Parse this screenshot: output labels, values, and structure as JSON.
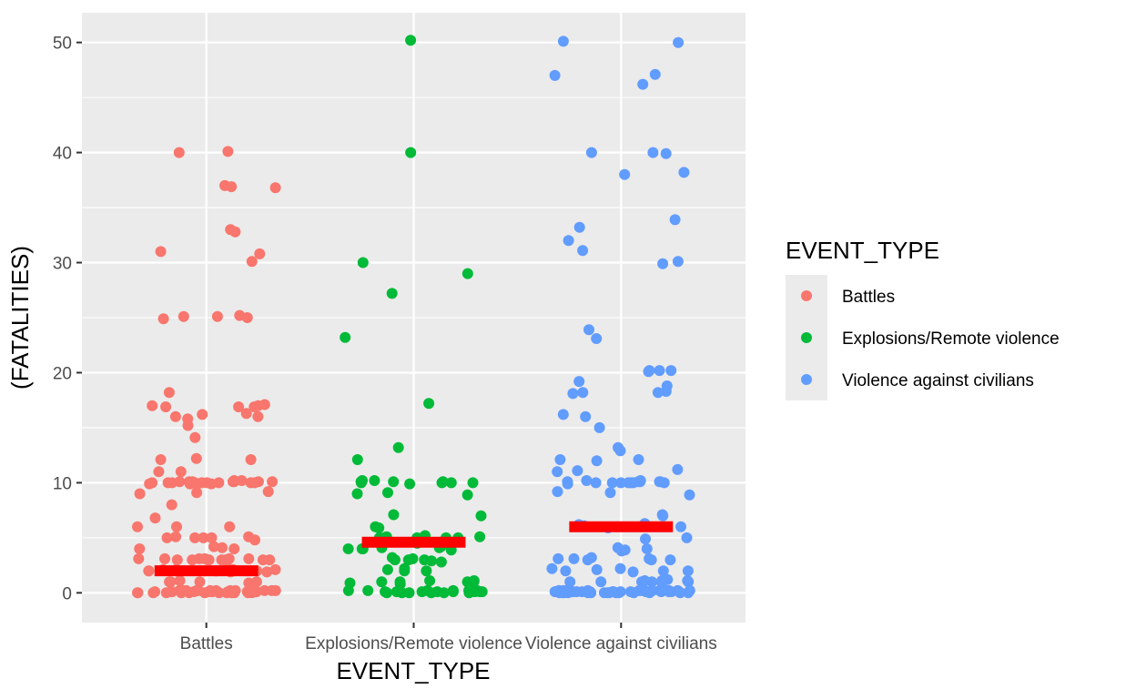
{
  "chart_data": {
    "type": "scatter",
    "title": "",
    "xlabel": "EVENT_TYPE",
    "ylabel": "(FATALITIES)",
    "categories": [
      "Battles",
      "Explosions/Remote violence",
      "Violence against civilians"
    ],
    "y_ticks": [
      0,
      10,
      20,
      30,
      40,
      50
    ],
    "ylim": [
      -2.7,
      52.7
    ],
    "grid": true,
    "legend": {
      "title": "EVENT_TYPE",
      "position": "right",
      "entries": [
        {
          "label": "Battles",
          "color": "#F8766D"
        },
        {
          "label": "Explosions/Remote violence",
          "color": "#00BA38"
        },
        {
          "label": "Violence against civilians",
          "color": "#619CFF"
        }
      ]
    },
    "mean_bars": [
      {
        "category": "Battles",
        "value": 2.0,
        "color": "#FF0000"
      },
      {
        "category": "Explosions/Remote violence",
        "value": 4.6,
        "color": "#FF0000"
      },
      {
        "category": "Violence against civilians",
        "value": 6.0,
        "color": "#FF0000"
      }
    ],
    "series": [
      {
        "name": "Battles",
        "color": "#F8766D",
        "values": [
          40.1,
          40,
          37,
          36.8,
          36.9,
          33,
          31,
          30.8,
          32.8,
          30.1,
          25.2,
          25.1,
          25,
          24.9,
          25.1,
          18.2,
          16.9,
          16.3,
          17,
          16.9,
          17,
          16.2,
          16.9,
          15.8,
          16,
          15.2,
          17.1,
          16,
          14.1,
          12.2,
          12.1,
          12.1,
          11,
          11,
          10.1,
          10,
          10.1,
          10,
          10.2,
          10,
          9.9,
          10.1,
          10,
          10.1,
          9.9,
          10,
          10.2,
          10,
          10,
          9.9,
          10.1,
          10,
          10.1,
          10,
          9.9,
          10.1,
          10,
          9.2,
          9.1,
          9,
          8,
          6.8,
          6,
          6,
          6,
          5.1,
          5,
          5,
          5.1,
          5,
          5,
          4.8,
          4.1,
          4,
          4,
          4.2,
          3.1,
          3,
          3.1,
          3,
          3.1,
          3,
          3.1,
          3,
          3,
          3,
          3.1,
          3,
          2.9,
          3,
          3.1,
          2,
          2.1,
          2,
          2.1,
          2,
          2.1,
          2,
          1.9,
          2,
          2,
          2.1,
          2,
          1.9,
          2,
          1,
          1,
          0.9,
          1.1,
          1,
          1,
          0.2,
          0.1,
          0.2,
          0,
          0.1,
          0.2,
          0,
          0.1,
          0.2,
          0,
          0.1,
          0.2,
          0,
          0.1,
          0.2,
          0,
          0.1,
          0.2,
          0,
          0.1,
          0.2,
          0,
          0.1,
          0.2,
          0,
          0.1,
          0.2,
          0,
          0.1,
          0.2,
          0,
          0.1,
          0.2,
          0,
          0.1,
          0.2,
          0,
          0.1,
          0.2,
          0,
          0.1
        ]
      },
      {
        "name": "Explosions/Remote violence",
        "color": "#00BA38",
        "values": [
          50.2,
          40,
          30,
          29,
          27.2,
          23.2,
          17.2,
          13.2,
          12.1,
          10.2,
          10.1,
          10,
          10,
          10.1,
          10,
          10.1,
          10.2,
          9.9,
          10,
          9.1,
          9,
          8.9,
          7.1,
          7,
          6,
          5.9,
          5.2,
          5.1,
          5,
          5,
          5.1,
          5,
          5,
          5,
          4.8,
          4.5,
          4.2,
          4.1,
          4.1,
          4,
          3.9,
          4,
          4,
          3.1,
          3,
          3,
          2.8,
          2.9,
          3,
          3.2,
          2.2,
          2,
          2,
          2.1,
          1.1,
          1,
          1.1,
          1,
          1,
          1,
          0.9,
          0.8,
          0.1,
          0.1,
          0.1,
          0.2,
          0,
          0.1,
          0.2,
          0,
          0.1,
          0.2,
          0,
          0.1,
          0.2,
          0,
          0.1,
          0.2,
          0,
          0.1,
          0.2,
          0,
          0.1
        ]
      },
      {
        "name": "Violence against civilians",
        "color": "#619CFF",
        "values": [
          50.1,
          50,
          47.1,
          47,
          46.2,
          40,
          39.9,
          40,
          38.2,
          38,
          33.9,
          33.2,
          32,
          31.1,
          30.1,
          29.9,
          23.9,
          23.1,
          20.2,
          20.2,
          20.1,
          20.2,
          19.2,
          18.8,
          18.3,
          18.2,
          18.2,
          18.1,
          16.2,
          16,
          15,
          13.2,
          12.9,
          12.1,
          12,
          12.1,
          11.2,
          11.1,
          11,
          10.2,
          10.1,
          10,
          10.1,
          10,
          10.1,
          10,
          10,
          10.2,
          10.1,
          10,
          9.9,
          10,
          10,
          10.1,
          9.1,
          9.2,
          8.9,
          7.1,
          7,
          6.1,
          6.2,
          6.3,
          6,
          5.9,
          6,
          5,
          4.9,
          4.1,
          4,
          3.9,
          3.8,
          3.1,
          3,
          3.2,
          3,
          3.1,
          3.1,
          3,
          2.2,
          2.1,
          2.2,
          2,
          2,
          2,
          1.9,
          1.1,
          1.1,
          1,
          1.2,
          1,
          1,
          1.1,
          1,
          0.9,
          1,
          0.2,
          0.1,
          0.2,
          0,
          0.1,
          0.2,
          0,
          0.1,
          0.2,
          0,
          0.1,
          0.2,
          0,
          0.1,
          0.2,
          0,
          0.1,
          0.2,
          0,
          0.1,
          0.2,
          0,
          0.1,
          0.2,
          0,
          0.1,
          0.2,
          0,
          0.1,
          0.2,
          0,
          0.1,
          0.2,
          0,
          0.1,
          0.2,
          0,
          0.1,
          0.2,
          0,
          0.1,
          0.2,
          0,
          0.1,
          0.2,
          0,
          0.1
        ]
      }
    ]
  }
}
